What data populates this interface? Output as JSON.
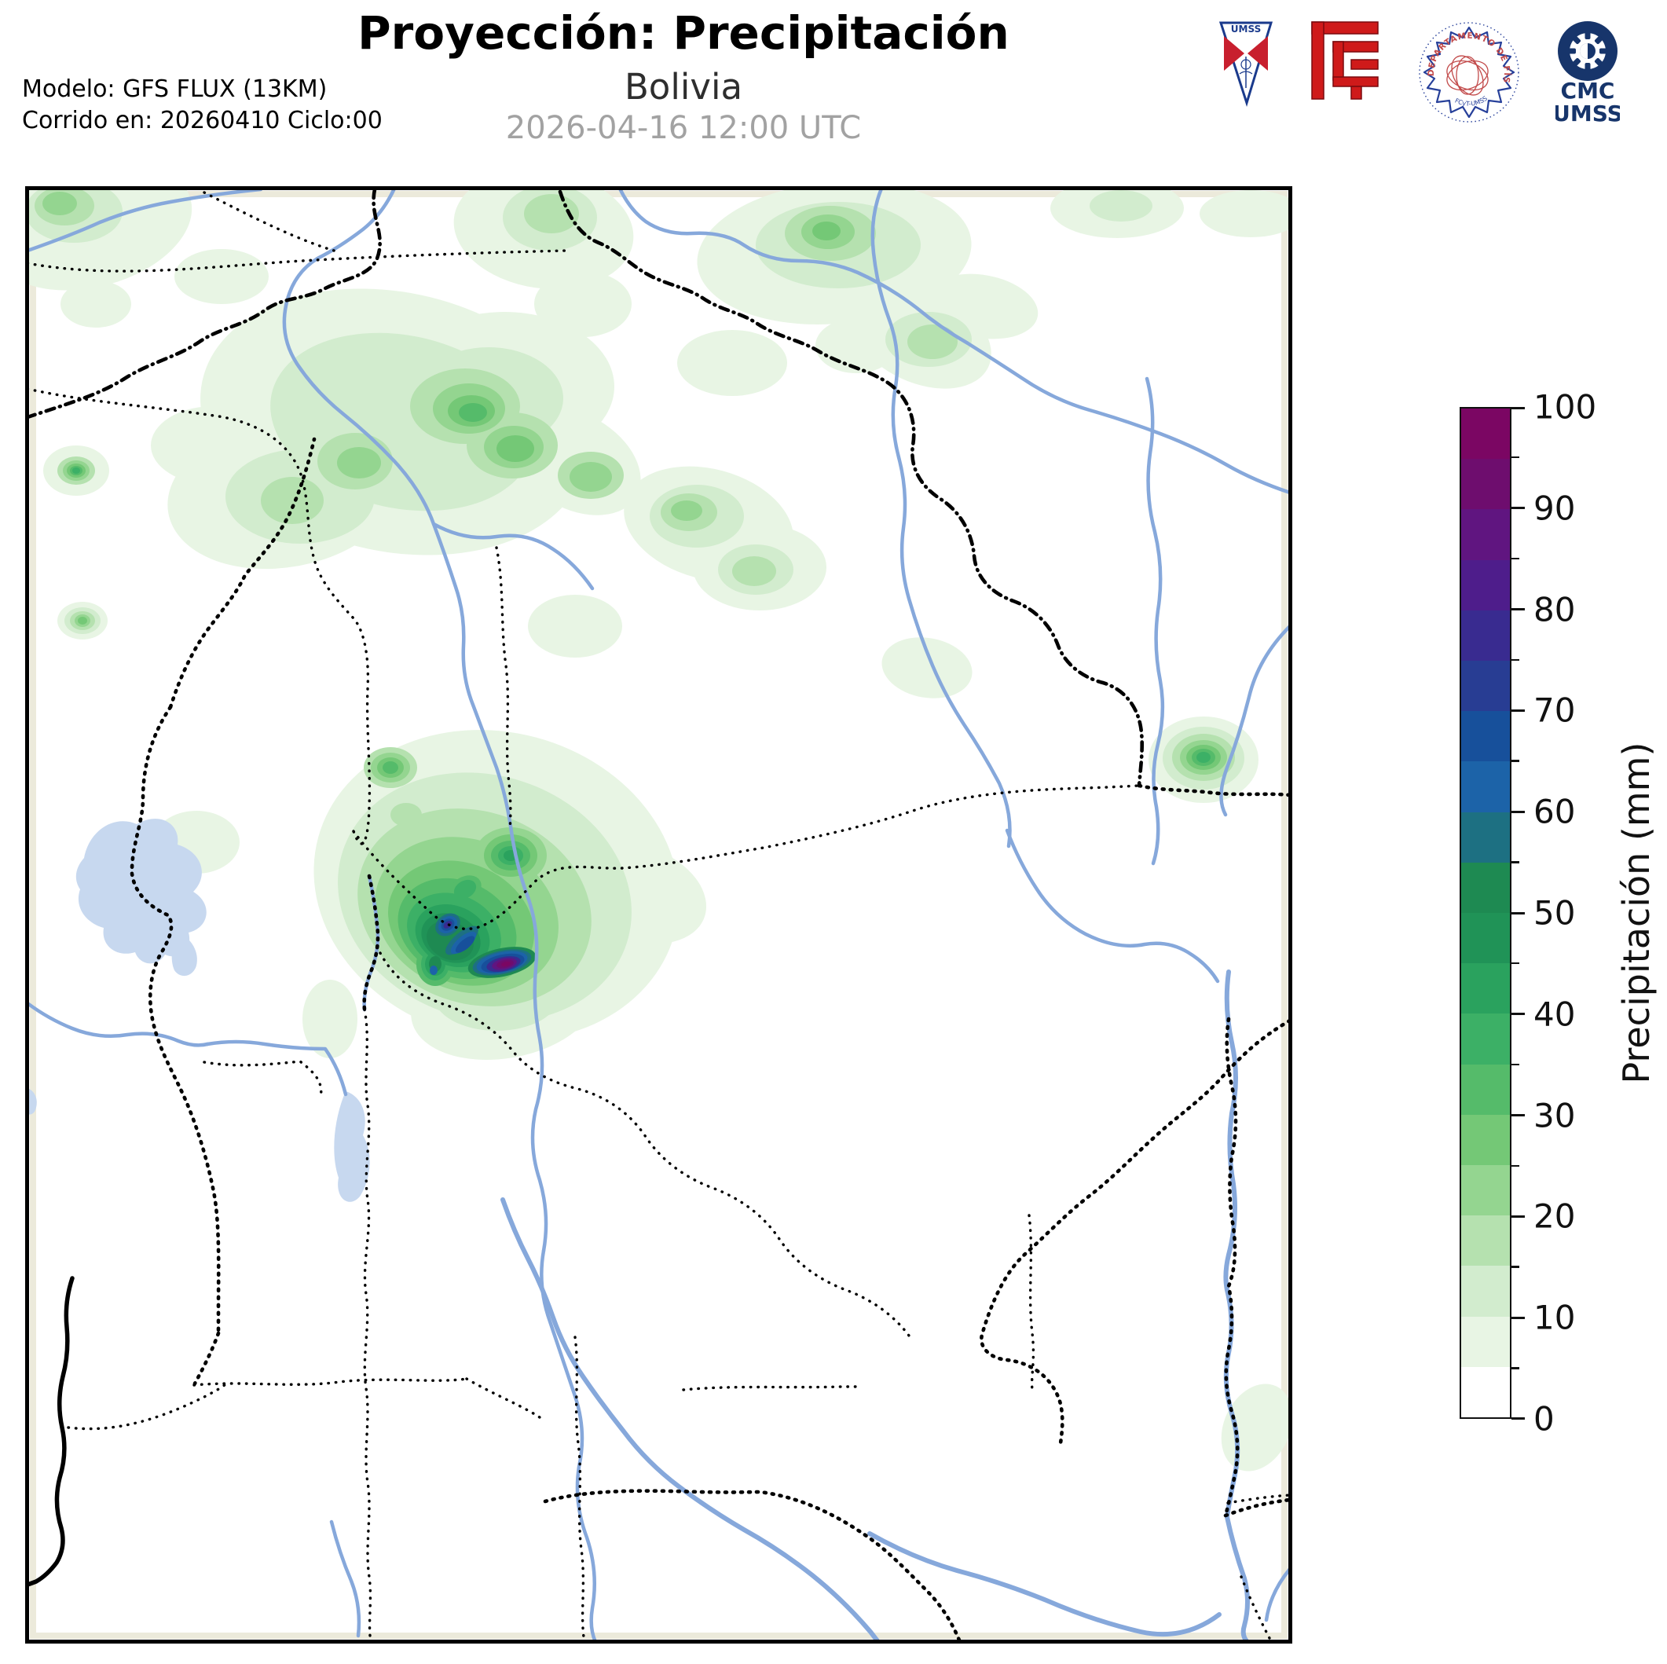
{
  "header": {
    "title": "Proyección: Precipitación",
    "subtitle": "Bolivia",
    "valid_datetime": "2026-04-16 12:00 UTC",
    "model_line_1": "Modelo: GFS FLUX (13KM)",
    "model_line_2": "Corrido en: 20260410 Ciclo:00"
  },
  "logos": {
    "umss_pennant_text": "UMSS",
    "physics_seal_text_top": "DEPARTAMENTO DE FÍSICA",
    "physics_seal_text_bottom": "FCyT-UMSS",
    "cmc_line_1": "CMC",
    "cmc_line_2": "UMSS",
    "colors": {
      "navy": "#17356b",
      "red": "#cf1a1a",
      "seal_blue": "#27409a",
      "seal_red": "#c24a4a"
    }
  },
  "colorbar": {
    "label": "Precipitación (mm)",
    "min": 0,
    "max": 100,
    "major_tick_step": 10,
    "minor_tick_step": 5,
    "major_ticks": [
      0,
      10,
      20,
      30,
      40,
      50,
      60,
      70,
      80,
      90,
      100
    ],
    "segment_step_mm": 5,
    "segment_colors_low_to_high": [
      "#ffffff",
      "#e8f5e4",
      "#d2ecce",
      "#b5e1af",
      "#94d590",
      "#74c876",
      "#55bb6a",
      "#3cb066",
      "#2aa25e",
      "#209357",
      "#1e8a52",
      "#1d7082",
      "#1c63a8",
      "#17509b",
      "#283d93",
      "#392b90",
      "#4e1d8b",
      "#601580",
      "#6e0d6e",
      "#7b0663"
    ]
  },
  "map": {
    "region": "Bolivia",
    "colors": {
      "river": "#86a8db",
      "lake": "#c7d8ef",
      "border": "#000000",
      "inner_margin": "#eceadb",
      "background": "#ffffff"
    }
  },
  "chart_data": {
    "type": "heatmap",
    "subtype": "filled-contour precipitation map",
    "title": "Proyección: Precipitación",
    "region": "Bolivia",
    "model": "GFS FLUX (13KM)",
    "run": "20260410 Ciclo:00",
    "valid_time": "2026-04-16 12:00 UTC",
    "colorbar_label": "Precipitación (mm)",
    "levels_mm": [
      0,
      5,
      10,
      15,
      20,
      25,
      30,
      35,
      40,
      45,
      50,
      55,
      60,
      65,
      70,
      75,
      80,
      85,
      90,
      95,
      100
    ],
    "level_colors": [
      "#ffffff",
      "#e8f5e4",
      "#d2ecce",
      "#b5e1af",
      "#94d590",
      "#74c876",
      "#55bb6a",
      "#3cb066",
      "#2aa25e",
      "#209357",
      "#1e8a52",
      "#1d7082",
      "#1c63a8",
      "#17509b",
      "#283d93",
      "#392b90",
      "#4e1d8b",
      "#601580",
      "#6e0d6e",
      "#7b0663"
    ],
    "depicted_maxima": [
      {
        "location": "center-west intense cell (Cochabamba area)",
        "approx_max_mm": 100
      },
      {
        "location": "secondary purple core northwest of main cell",
        "approx_max_mm": 75
      },
      {
        "location": "north-central highlands cluster",
        "approx_max_mm": 35
      },
      {
        "location": "far west small cell",
        "approx_max_mm": 40
      },
      {
        "location": "east-central small cell",
        "approx_max_mm": 40
      },
      {
        "location": "broad light rain (north half of domain)",
        "approx_max_mm": 15
      }
    ]
  }
}
